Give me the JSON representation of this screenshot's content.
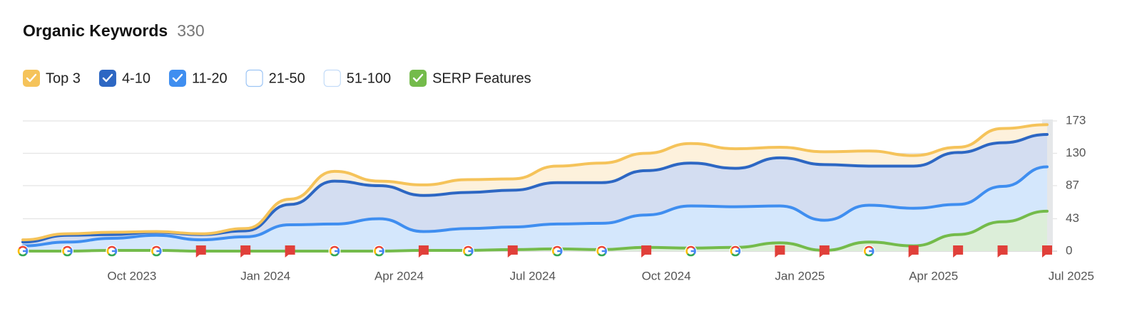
{
  "chart_data": {
    "type": "area",
    "title": "Organic Keywords",
    "total": 330,
    "x": [
      "Aug 2023",
      "Sep 2023",
      "Oct 2023",
      "Nov 2023",
      "Dec 2023",
      "Jan 2024",
      "Feb 2024",
      "Mar 2024",
      "Apr 2024",
      "May 2024",
      "Jun 2024",
      "Jul 2024",
      "Aug 2024",
      "Sep 2024",
      "Oct 2024",
      "Nov 2024",
      "Dec 2024",
      "Jan 2025",
      "Feb 2025",
      "Mar 2025",
      "Apr 2025",
      "May 2025",
      "Jun 2025",
      "Jul 2025"
    ],
    "xticks": [
      "Oct 2023",
      "Jan 2024",
      "Apr 2024",
      "Jul 2024",
      "Oct 2024",
      "Jan 2025",
      "Apr 2025",
      "Jul 2025"
    ],
    "ylim": [
      0,
      173
    ],
    "yticks": [
      0,
      43,
      87,
      130,
      173
    ],
    "grid": true,
    "series": [
      {
        "name": "Top 3",
        "color": "#f5c35a",
        "fill": "#fdf1dc",
        "checked": true,
        "stacked": true,
        "values": [
          3,
          2,
          3,
          1,
          1,
          3,
          7,
          13,
          6,
          14,
          17,
          15,
          22,
          26,
          23,
          26,
          26,
          14,
          17,
          20,
          14,
          7,
          19,
          13
        ]
      },
      {
        "name": "4-10",
        "color": "#2d67c3",
        "fill": "#d3ddf1",
        "checked": true,
        "stacked": true,
        "values": [
          5,
          9,
          5,
          4,
          7,
          8,
          27,
          57,
          44,
          48,
          48,
          49,
          55,
          54,
          59,
          57,
          51,
          64,
          74,
          52,
          56,
          69,
          58,
          43
        ]
      },
      {
        "name": "11-20",
        "color": "#3f8ef0",
        "fill": "#d4e7fc",
        "checked": true,
        "stacked": true,
        "values": [
          7,
          12,
          17,
          21,
          15,
          19,
          35,
          36,
          43,
          26,
          30,
          32,
          36,
          37,
          48,
          60,
          59,
          60,
          41,
          61,
          57,
          62,
          86,
          112
        ]
      },
      {
        "name": "21-50",
        "color": "#9dc5f5",
        "checked": false
      },
      {
        "name": "51-100",
        "color": "#c4dcf8",
        "checked": false
      },
      {
        "name": "SERP Features",
        "color": "#74bb4b",
        "fill": "#ddefd2",
        "checked": true,
        "stacked": false,
        "values": [
          0,
          0,
          1,
          1,
          0,
          0,
          0,
          0,
          0,
          1,
          1,
          2,
          3,
          2,
          5,
          4,
          5,
          11,
          1,
          12,
          7,
          22,
          39,
          53
        ]
      }
    ]
  }
}
